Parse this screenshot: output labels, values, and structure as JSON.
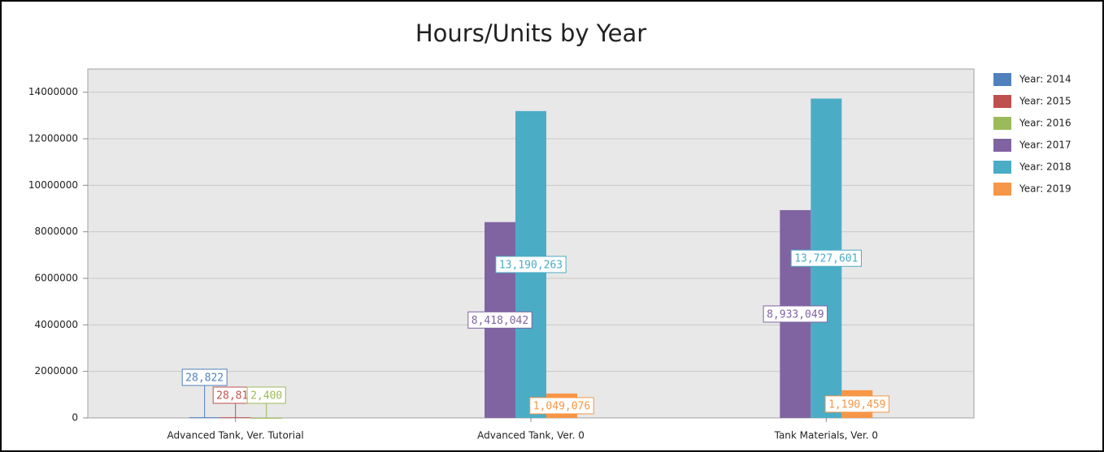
{
  "chart_data": {
    "type": "bar",
    "title": "Hours/Units by Year",
    "categories": [
      "Advanced Tank, Ver. Tutorial",
      "Advanced Tank, Ver. 0",
      "Tank Materials, Ver. 0"
    ],
    "series": [
      {
        "name": "Year: 2014",
        "color": "#4f81bd",
        "values": [
          28822,
          null,
          null
        ],
        "value_labels": [
          "28,822",
          null,
          null
        ]
      },
      {
        "name": "Year: 2015",
        "color": "#c0504d",
        "values": [
          28814,
          null,
          null
        ],
        "value_labels": [
          "28,814",
          null,
          null
        ]
      },
      {
        "name": "Year: 2016",
        "color": "#9bbb59",
        "values": [
          2400,
          null,
          null
        ],
        "value_labels": [
          "2,400",
          null,
          null
        ]
      },
      {
        "name": "Year: 2017",
        "color": "#8064a2",
        "values": [
          null,
          8418042,
          8933049
        ],
        "value_labels": [
          null,
          "8,418,042",
          "8,933,049"
        ]
      },
      {
        "name": "Year: 2018",
        "color": "#4bacc6",
        "values": [
          null,
          13190263,
          13727601
        ],
        "value_labels": [
          null,
          "13,190,263",
          "13,727,601"
        ]
      },
      {
        "name": "Year: 2019",
        "color": "#f79646",
        "values": [
          null,
          1049076,
          1190459
        ],
        "value_labels": [
          null,
          "1,049,076",
          "1,190,459"
        ]
      }
    ],
    "ylim": [
      0,
      15000000
    ],
    "yticks": [
      0,
      2000000,
      4000000,
      6000000,
      8000000,
      10000000,
      12000000,
      14000000
    ],
    "grid": true,
    "legend": "right"
  }
}
